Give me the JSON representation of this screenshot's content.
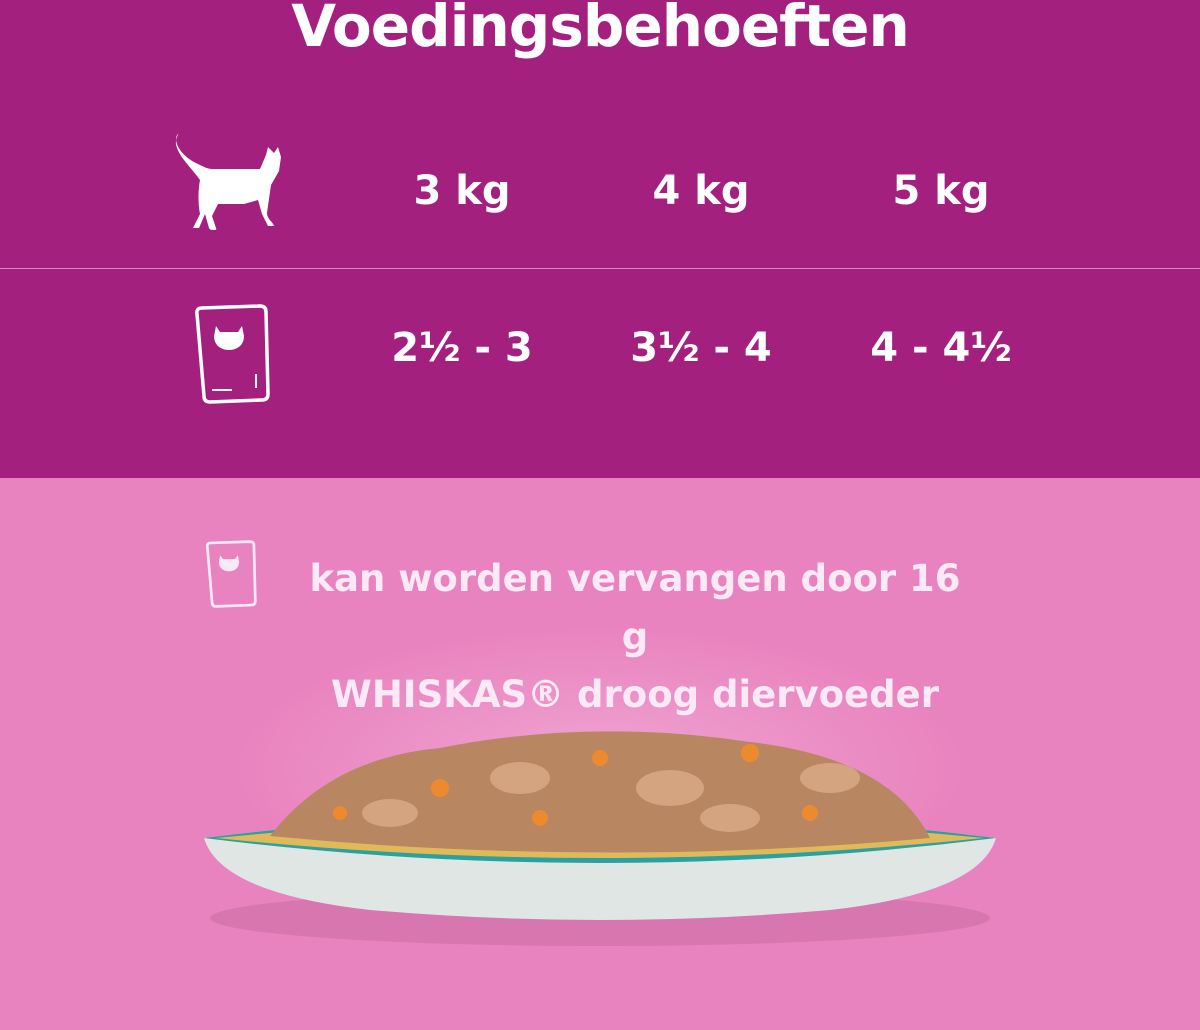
{
  "title": "Voedingsbehoeften",
  "weights": [
    "3 kg",
    "4 kg",
    "5 kg"
  ],
  "pouches": [
    "2½ - 3",
    "3½ - 4",
    "4 - 4½"
  ],
  "note": {
    "line1": "kan worden vervangen door 16 g",
    "line2": "WHISKAS® droog diervoeder"
  },
  "colors": {
    "top": "#a3207f",
    "bottom": "#e983bf"
  },
  "icons": [
    "cat-icon",
    "pouch-icon"
  ]
}
